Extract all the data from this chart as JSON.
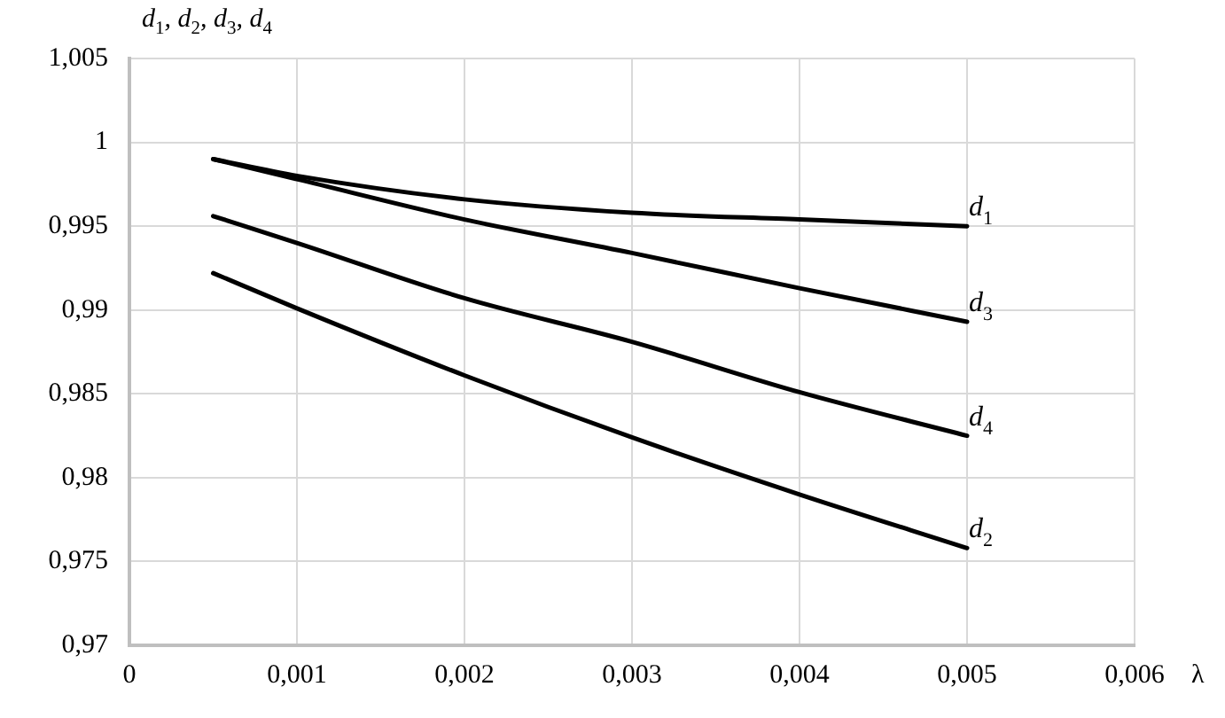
{
  "chart_data": {
    "type": "line",
    "ylabel": "d$_{1}$, d$_{2}$, d$_{3}$, d$_{4}$",
    "xlabel": "λ",
    "x": [
      0.0005,
      0.001,
      0.002,
      0.003,
      0.004,
      0.005
    ],
    "series": [
      {
        "name": "d$_{1}$",
        "color": "#000000",
        "values": [
          0.999,
          0.998,
          0.9966,
          0.9958,
          0.9954,
          0.995
        ]
      },
      {
        "name": "d$_{3}$",
        "color": "#000000",
        "values": [
          0.999,
          0.9978,
          0.9954,
          0.9934,
          0.9913,
          0.9893
        ]
      },
      {
        "name": "d$_{4}$",
        "color": "#000000",
        "values": [
          0.9956,
          0.994,
          0.9907,
          0.9881,
          0.9851,
          0.9825
        ]
      },
      {
        "name": "d$_{2}$",
        "color": "#000000",
        "values": [
          0.9922,
          0.9901,
          0.9861,
          0.9824,
          0.979,
          0.9758
        ]
      }
    ],
    "xlim": [
      0,
      0.006
    ],
    "xticks": [
      0,
      {
        "value": 0.001,
        "label": "0,001"
      },
      {
        "value": 0.002,
        "label": "0,002"
      },
      {
        "value": 0.003,
        "label": "0,003"
      },
      {
        "value": 0.004,
        "label": "0,004"
      },
      {
        "value": 0.005,
        "label": "0,005"
      },
      {
        "value": 0.006,
        "label": "0,006"
      }
    ],
    "ylim": [
      0.97,
      1.005
    ],
    "yticks": [
      {
        "value": 0.97,
        "label": "0,97"
      },
      {
        "value": 0.975,
        "label": "0,975"
      },
      {
        "value": 0.98,
        "label": "0,98"
      },
      {
        "value": 0.985,
        "label": "0,985"
      },
      {
        "value": 0.99,
        "label": "0,99"
      },
      {
        "value": 0.995,
        "label": "0,995"
      },
      1,
      {
        "value": 1.005,
        "label": "1,005"
      }
    ],
    "grid": true,
    "legend": false,
    "marker": "none",
    "line_style": "solid"
  }
}
